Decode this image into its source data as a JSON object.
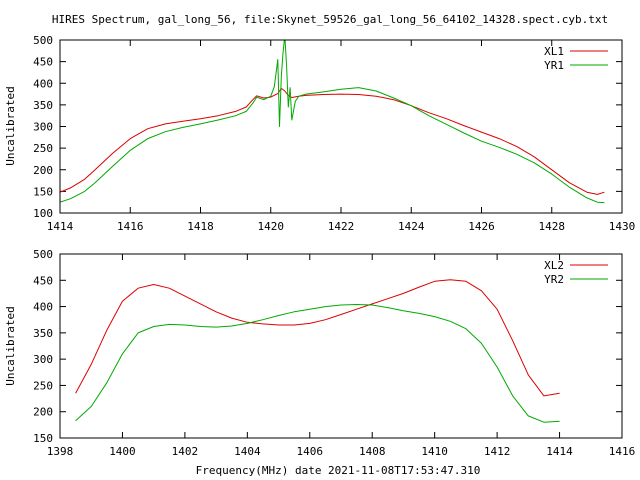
{
  "title": "HIRES Spectrum, gal_long_56, file:Skynet_59526_gal_long_56_64102_14328.spect.cyb.txt",
  "xlabel": "Frequency(MHz) date 2021-11-08T17:53:47.310",
  "colors": {
    "red": "#dd0000",
    "green": "#00aa00",
    "axis": "#000000",
    "background": "#ffffff"
  },
  "chart_data": [
    {
      "type": "line",
      "ylabel": "Uncalibrated",
      "xlim": [
        1414,
        1430
      ],
      "ylim": [
        100,
        500
      ],
      "xticks": [
        1414,
        1416,
        1418,
        1420,
        1422,
        1424,
        1426,
        1428,
        1430
      ],
      "yticks": [
        100,
        150,
        200,
        250,
        300,
        350,
        400,
        450,
        500
      ],
      "legend_position": "top-right",
      "grid": false,
      "series": [
        {
          "name": "XL1",
          "color": "#dd0000",
          "x": [
            1414.0,
            1414.3,
            1414.7,
            1415.0,
            1415.5,
            1416.0,
            1416.5,
            1417.0,
            1417.5,
            1418.0,
            1418.5,
            1419.0,
            1419.3,
            1419.5,
            1419.6,
            1419.8,
            1420.0,
            1420.2,
            1420.3,
            1420.4,
            1420.5,
            1420.6,
            1420.8,
            1421.0,
            1421.5,
            1422.0,
            1422.5,
            1423.0,
            1423.5,
            1424.0,
            1424.5,
            1425.0,
            1425.5,
            1426.0,
            1426.5,
            1427.0,
            1427.5,
            1428.0,
            1428.5,
            1429.0,
            1429.3,
            1429.5
          ],
          "y": [
            148,
            158,
            178,
            200,
            238,
            272,
            295,
            306,
            312,
            318,
            325,
            335,
            345,
            363,
            371,
            366,
            368,
            376,
            388,
            382,
            372,
            367,
            370,
            372,
            374,
            375,
            374,
            370,
            362,
            348,
            332,
            318,
            302,
            287,
            272,
            254,
            230,
            200,
            170,
            148,
            143,
            148
          ]
        },
        {
          "name": "YR1",
          "color": "#00aa00",
          "x": [
            1414.0,
            1414.3,
            1414.7,
            1415.0,
            1415.5,
            1416.0,
            1416.5,
            1417.0,
            1417.5,
            1418.0,
            1418.5,
            1419.0,
            1419.3,
            1419.5,
            1419.6,
            1419.8,
            1420.0,
            1420.1,
            1420.2,
            1420.25,
            1420.3,
            1420.35,
            1420.4,
            1420.45,
            1420.5,
            1420.55,
            1420.6,
            1420.7,
            1420.8,
            1421.0,
            1421.5,
            1422.0,
            1422.5,
            1423.0,
            1423.5,
            1424.0,
            1424.5,
            1425.0,
            1425.5,
            1426.0,
            1426.5,
            1427.0,
            1427.5,
            1428.0,
            1428.5,
            1429.0,
            1429.3,
            1429.5
          ],
          "y": [
            125,
            133,
            150,
            170,
            208,
            245,
            272,
            288,
            298,
            306,
            315,
            325,
            335,
            355,
            368,
            362,
            370,
            392,
            455,
            300,
            415,
            470,
            510,
            440,
            345,
            390,
            315,
            358,
            370,
            375,
            380,
            386,
            390,
            382,
            366,
            348,
            325,
            305,
            285,
            266,
            252,
            236,
            216,
            190,
            160,
            135,
            125,
            124
          ]
        }
      ]
    },
    {
      "type": "line",
      "ylabel": "Uncalibrated",
      "xlim": [
        1398,
        1416
      ],
      "ylim": [
        150,
        500
      ],
      "xticks": [
        1398,
        1400,
        1402,
        1404,
        1406,
        1408,
        1410,
        1412,
        1414,
        1416
      ],
      "yticks": [
        150,
        200,
        250,
        300,
        350,
        400,
        450,
        500
      ],
      "legend_position": "top-right",
      "grid": false,
      "series": [
        {
          "name": "XL2",
          "color": "#dd0000",
          "x": [
            1398.5,
            1399.0,
            1399.5,
            1400.0,
            1400.5,
            1401.0,
            1401.5,
            1402.0,
            1402.5,
            1403.0,
            1403.5,
            1404.0,
            1404.5,
            1405.0,
            1405.5,
            1406.0,
            1406.5,
            1407.0,
            1407.5,
            1408.0,
            1408.5,
            1409.0,
            1409.5,
            1410.0,
            1410.5,
            1411.0,
            1411.5,
            1412.0,
            1412.5,
            1413.0,
            1413.5,
            1414.0
          ],
          "y": [
            235,
            290,
            355,
            410,
            435,
            442,
            435,
            420,
            405,
            390,
            378,
            370,
            367,
            365,
            365,
            368,
            375,
            385,
            395,
            405,
            415,
            425,
            437,
            448,
            451,
            448,
            430,
            395,
            335,
            270,
            230,
            235
          ]
        },
        {
          "name": "YR2",
          "color": "#00aa00",
          "x": [
            1398.5,
            1399.0,
            1399.5,
            1400.0,
            1400.5,
            1401.0,
            1401.5,
            1402.0,
            1402.5,
            1403.0,
            1403.5,
            1404.0,
            1404.5,
            1405.0,
            1405.5,
            1406.0,
            1406.5,
            1407.0,
            1407.5,
            1408.0,
            1408.5,
            1409.0,
            1409.5,
            1410.0,
            1410.5,
            1411.0,
            1411.5,
            1412.0,
            1412.5,
            1413.0,
            1413.5,
            1414.0
          ],
          "y": [
            183,
            210,
            255,
            310,
            350,
            362,
            366,
            365,
            362,
            361,
            363,
            368,
            375,
            383,
            390,
            395,
            400,
            403,
            404,
            403,
            398,
            392,
            387,
            381,
            372,
            358,
            330,
            285,
            230,
            192,
            180,
            182
          ]
        }
      ]
    }
  ]
}
